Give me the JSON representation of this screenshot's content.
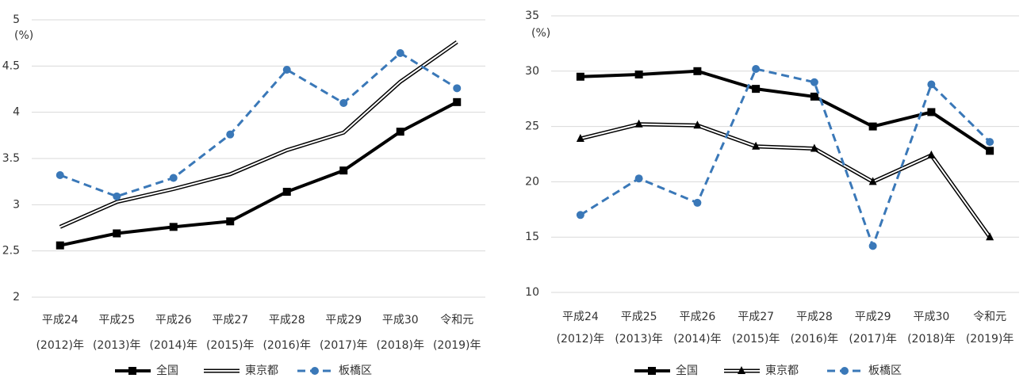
{
  "chart_data": [
    {
      "type": "line",
      "ylabel": "(%)",
      "categories": [
        [
          "平成24",
          "(2012)年"
        ],
        [
          "平成25",
          "(2013)年"
        ],
        [
          "平成26",
          "(2014)年"
        ],
        [
          "平成27",
          "(2015)年"
        ],
        [
          "平成28",
          "(2016)年"
        ],
        [
          "平成29",
          "(2017)年"
        ],
        [
          "平成30",
          "(2018)年"
        ],
        [
          "令和元",
          "(2019)年"
        ]
      ],
      "ylim": [
        2,
        5
      ],
      "yticks": [
        2,
        2.5,
        3,
        3.5,
        4,
        4.5,
        5
      ],
      "grid": true,
      "series": [
        {
          "name": "全国",
          "color": "#000000",
          "style": "solid",
          "marker": "square",
          "values": [
            2.56,
            2.69,
            2.76,
            2.82,
            3.14,
            3.37,
            3.79,
            4.11
          ]
        },
        {
          "name": "東京都",
          "color": "#000000",
          "style": "double",
          "marker": "none",
          "values": [
            2.76,
            3.03,
            3.17,
            3.33,
            3.59,
            3.78,
            4.33,
            4.76
          ]
        },
        {
          "name": "板橋区",
          "color": "#3a78b8",
          "style": "dashed",
          "marker": "circle",
          "values": [
            3.32,
            3.09,
            3.29,
            3.76,
            4.46,
            4.1,
            4.64,
            4.26
          ]
        }
      ]
    },
    {
      "type": "line",
      "ylabel": "(%)",
      "categories": [
        [
          "平成24",
          "(2012)年"
        ],
        [
          "平成25",
          "(2013)年"
        ],
        [
          "平成26",
          "(2014)年"
        ],
        [
          "平成27",
          "(2015)年"
        ],
        [
          "平成28",
          "(2016)年"
        ],
        [
          "平成29",
          "(2017)年"
        ],
        [
          "平成30",
          "(2018)年"
        ],
        [
          "令和元",
          "(2019)年"
        ]
      ],
      "ylim": [
        10,
        35
      ],
      "yticks": [
        10,
        15,
        20,
        25,
        30,
        35
      ],
      "grid": true,
      "series": [
        {
          "name": "全国",
          "color": "#000000",
          "style": "solid",
          "marker": "square",
          "values": [
            29.5,
            29.7,
            30.0,
            28.4,
            27.7,
            25.0,
            26.3,
            22.8
          ]
        },
        {
          "name": "東京都",
          "color": "#000000",
          "style": "double",
          "marker": "triangle",
          "values": [
            23.9,
            25.2,
            25.1,
            23.2,
            23.0,
            20.0,
            22.4,
            15.0
          ]
        },
        {
          "name": "板橋区",
          "color": "#3a78b8",
          "style": "dashed",
          "marker": "circle",
          "values": [
            17.0,
            20.3,
            18.1,
            30.2,
            29.0,
            14.2,
            28.8,
            23.6
          ]
        }
      ]
    }
  ]
}
